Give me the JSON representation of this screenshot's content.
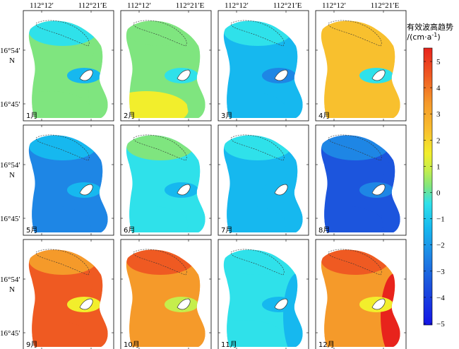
{
  "colorbar": {
    "title_line1": "有效波高趋势",
    "title_line2": "/(cm·a",
    "title_sup": "-1",
    "title_end": ")",
    "ticks": [
      "5",
      "4",
      "3",
      "2",
      "1",
      "0",
      "−1",
      "−2",
      "−3",
      "−4",
      "−5"
    ],
    "stops": [
      {
        "v": 5,
        "color": "#e8231c"
      },
      {
        "v": 4,
        "color": "#ef5a22"
      },
      {
        "v": 3,
        "color": "#f59a2a"
      },
      {
        "v": 2,
        "color": "#f8c02e"
      },
      {
        "v": 1.2,
        "color": "#f2ee2c"
      },
      {
        "v": 0.6,
        "color": "#c5ee4c"
      },
      {
        "v": 0,
        "color": "#7fe57f"
      },
      {
        "v": -0.6,
        "color": "#2fe1ea"
      },
      {
        "v": -1.5,
        "color": "#16b8ef"
      },
      {
        "v": -2.5,
        "color": "#1e86e5"
      },
      {
        "v": -3.5,
        "color": "#1c55dd"
      },
      {
        "v": -5,
        "color": "#1414e6"
      }
    ]
  },
  "axes": {
    "lon_ticks": [
      "112°12′",
      "112°21′E"
    ],
    "lat_ticks": [
      "16°54′",
      "N",
      "16°45′"
    ]
  },
  "panels": [
    {
      "month": "1月",
      "base": 0,
      "north": -0.8,
      "island": -1.2,
      "south": 0,
      "east": 0
    },
    {
      "month": "2月",
      "base": 0,
      "north": 0,
      "island": -0.8,
      "south": 1.2,
      "east": 0
    },
    {
      "month": "3月",
      "base": -1.6,
      "north": -0.8,
      "island": -2.2,
      "south": -1.7,
      "east": -1.8
    },
    {
      "month": "4月",
      "base": 1.6,
      "north": 2.2,
      "island": -0.8,
      "south": 1.8,
      "east": 2.0
    },
    {
      "month": "5月",
      "base": -2.0,
      "north": -1.2,
      "island": -1.5,
      "south": -2.0,
      "east": -2.6
    },
    {
      "month": "6月",
      "base": -0.9,
      "north": 0,
      "island": -1.1,
      "south": -0.9,
      "east": -0.9
    },
    {
      "month": "7月",
      "base": -1.2,
      "north": -0.7,
      "island": -1.8,
      "south": -1.3,
      "east": -1.4
    },
    {
      "month": "8月",
      "base": -3.0,
      "north": -2.4,
      "island": -2.0,
      "south": -3.1,
      "east": -3.3
    },
    {
      "month": "9月",
      "base": 3.6,
      "north": 2.6,
      "island": 1.0,
      "south": 3.8,
      "east": 4.0
    },
    {
      "month": "10月",
      "base": 3.2,
      "north": 3.8,
      "island": 0.8,
      "south": 2.6,
      "east": 3.4
    },
    {
      "month": "11月",
      "base": -1.0,
      "north": -0.8,
      "island": -1.6,
      "south": -1.0,
      "east": -1.1
    },
    {
      "month": "12月",
      "base": 3.5,
      "north": 4.4,
      "island": 1.5,
      "south": 3.0,
      "east": 4.6
    }
  ]
}
